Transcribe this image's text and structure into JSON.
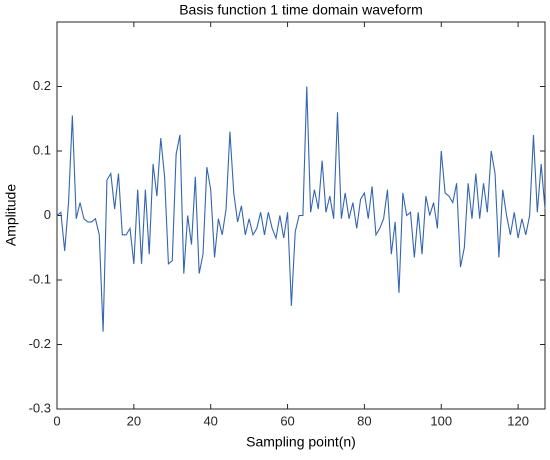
{
  "chart_data": {
    "type": "line",
    "title": "Basis function 1 time domain waveform",
    "x_label": "Sampling point(n)",
    "y_label": "Amplitude",
    "x": [
      0,
      1,
      2,
      3,
      4,
      5,
      6,
      7,
      8,
      9,
      10,
      11,
      12,
      13,
      14,
      15,
      16,
      17,
      18,
      19,
      20,
      21,
      22,
      23,
      24,
      25,
      26,
      27,
      28,
      29,
      30,
      31,
      32,
      33,
      34,
      35,
      36,
      37,
      38,
      39,
      40,
      41,
      42,
      43,
      44,
      45,
      46,
      47,
      48,
      49,
      50,
      51,
      52,
      53,
      54,
      55,
      56,
      57,
      58,
      59,
      60,
      61,
      62,
      63,
      64,
      65,
      66,
      67,
      68,
      69,
      70,
      71,
      72,
      73,
      74,
      75,
      76,
      77,
      78,
      79,
      80,
      81,
      82,
      83,
      84,
      85,
      86,
      87,
      88,
      89,
      90,
      91,
      92,
      93,
      94,
      95,
      96,
      97,
      98,
      99,
      100,
      101,
      102,
      103,
      104,
      105,
      106,
      107,
      108,
      109,
      110,
      111,
      112,
      113,
      114,
      115,
      116,
      117,
      118,
      119,
      120,
      121,
      122,
      123,
      124,
      125,
      126,
      127
    ],
    "series": [
      {
        "name": "Basis function 1",
        "color": "#3465b0",
        "values": [
          0.0,
          0.005,
          -0.055,
          0.02,
          0.155,
          -0.005,
          0.02,
          -0.005,
          -0.01,
          -0.01,
          -0.005,
          -0.03,
          -0.18,
          0.055,
          0.065,
          0.01,
          0.065,
          -0.03,
          -0.03,
          -0.02,
          -0.075,
          0.04,
          -0.075,
          0.04,
          -0.06,
          0.08,
          0.03,
          0.12,
          0.06,
          -0.075,
          -0.07,
          0.095,
          0.125,
          -0.09,
          0.0,
          -0.045,
          0.06,
          -0.09,
          -0.06,
          0.075,
          0.04,
          -0.065,
          -0.005,
          -0.03,
          0.01,
          0.13,
          0.035,
          -0.01,
          0.015,
          -0.03,
          -0.005,
          -0.03,
          -0.02,
          0.005,
          -0.03,
          0.005,
          -0.02,
          -0.035,
          0.0,
          -0.035,
          0.005,
          -0.14,
          -0.025,
          0.0,
          0.0,
          0.2,
          0.005,
          0.04,
          0.01,
          0.085,
          0.005,
          0.03,
          -0.005,
          0.16,
          -0.005,
          0.035,
          -0.005,
          0.02,
          -0.02,
          0.025,
          0.035,
          -0.005,
          0.045,
          -0.03,
          -0.02,
          -0.005,
          0.04,
          -0.06,
          -0.01,
          -0.12,
          0.035,
          0.0,
          0.005,
          -0.065,
          0.005,
          -0.06,
          0.03,
          0.0,
          0.02,
          -0.02,
          0.1,
          0.035,
          0.03,
          0.02,
          0.05,
          -0.08,
          -0.05,
          0.05,
          -0.005,
          0.065,
          -0.005,
          0.05,
          0.005,
          0.1,
          0.065,
          -0.065,
          0.04,
          0.0,
          -0.03,
          0.005,
          -0.035,
          -0.005,
          -0.03,
          0.0,
          0.125,
          0.005,
          0.08,
          0.01
        ]
      }
    ],
    "xlim": [
      0,
      127
    ],
    "xticks": [
      0,
      20,
      40,
      60,
      80,
      100,
      120
    ],
    "ylim": [
      -0.3,
      0.3
    ],
    "yticks": [
      -0.3,
      -0.2,
      -0.1,
      0,
      0.1,
      0.2
    ],
    "grid": false
  }
}
